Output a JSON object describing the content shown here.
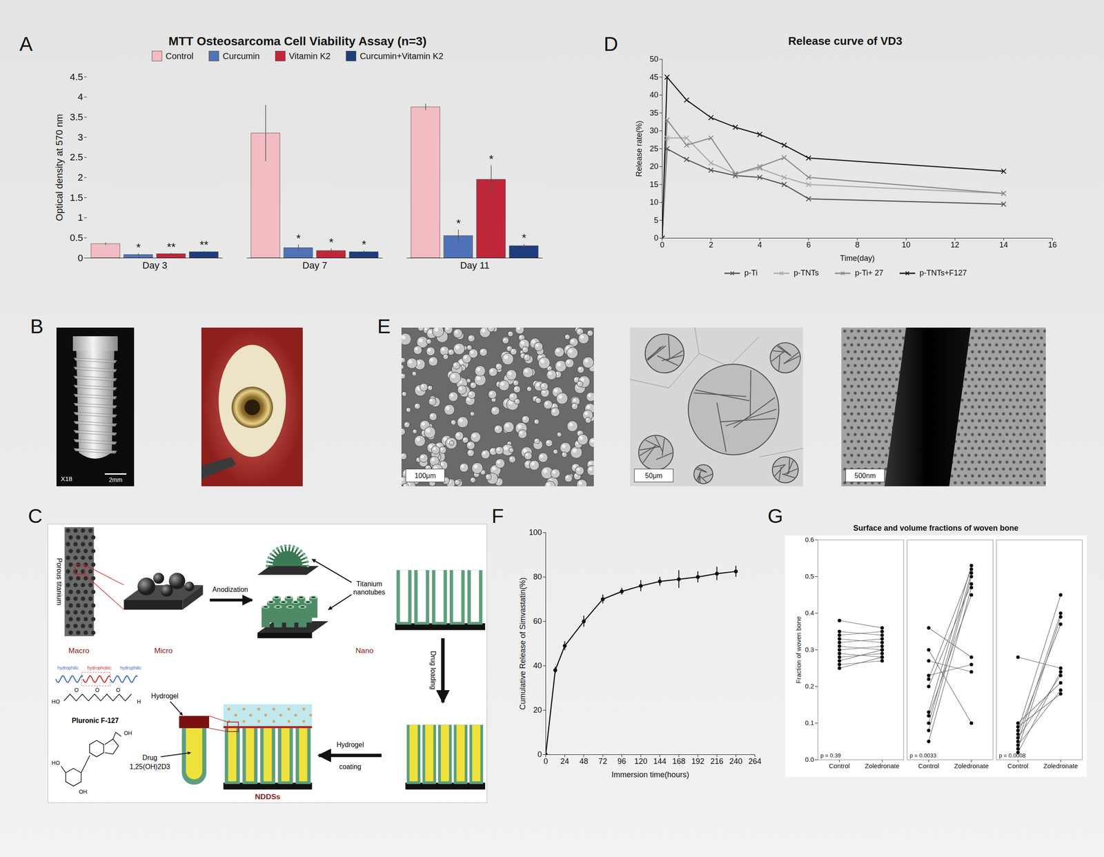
{
  "chart_data": [
    {
      "panel": "A",
      "type": "bar",
      "title": "MTT Osteosarcoma Cell Viability Assay (n=3)",
      "ylabel": "Optical density at 570 nm",
      "categories": [
        "Day 3",
        "Day 7",
        "Day 11"
      ],
      "series": [
        {
          "name": "Control",
          "color": "#f2bcc3",
          "values": [
            0.35,
            3.1,
            3.75
          ],
          "errors": [
            0.03,
            0.7,
            0.08
          ],
          "significance": [
            null,
            null,
            null
          ]
        },
        {
          "name": "Curcumin",
          "color": "#4f73b6",
          "values": [
            0.08,
            0.25,
            0.55
          ],
          "errors": [
            0.03,
            0.08,
            0.15
          ],
          "significance": [
            "*",
            "*",
            "*"
          ]
        },
        {
          "name": "Vitamin K2",
          "color": "#c0263a",
          "values": [
            0.1,
            0.18,
            1.95
          ],
          "errors": [
            0.02,
            0.05,
            0.35
          ],
          "significance": [
            "**",
            "*",
            "*"
          ]
        },
        {
          "name": "Curcumin+Vitamin K2",
          "color": "#1f3d7a",
          "values": [
            0.15,
            0.15,
            0.3
          ],
          "errors": [
            0.02,
            0.03,
            0.04
          ],
          "significance": [
            "**",
            "*",
            "*"
          ]
        }
      ],
      "ylim": [
        0,
        4.5
      ],
      "yticks": [
        0,
        0.5,
        1,
        1.5,
        2,
        2.5,
        3,
        3.5,
        4,
        4.5
      ],
      "legend": "top"
    },
    {
      "panel": "D",
      "type": "line",
      "title": "Release curve of VD3",
      "xlabel": "Time(day)",
      "ylabel": "Release rate(%)",
      "x": [
        0,
        0.2,
        1,
        2,
        3,
        4,
        5,
        6,
        14
      ],
      "series": [
        {
          "name": "p-Ti",
          "color": "#555555",
          "values": [
            0,
            25,
            22,
            19,
            17.5,
            17,
            15,
            11,
            9.5
          ]
        },
        {
          "name": "p-TNTs",
          "color": "#aaaaaa",
          "values": [
            0,
            28,
            28,
            21,
            18,
            19.5,
            17,
            15,
            12.5
          ]
        },
        {
          "name": "p-Ti+ 27",
          "color": "#888888",
          "values": [
            0,
            33,
            26,
            28,
            18,
            20,
            22.5,
            17,
            12.5
          ]
        },
        {
          "name": "p-TNTs+F127",
          "color": "#1a1a1a",
          "values": [
            0,
            45,
            38.6,
            33.7,
            31,
            29,
            26,
            22.4,
            18.7
          ]
        }
      ],
      "xlim": [
        0,
        16
      ],
      "xticks": [
        0,
        2,
        4,
        6,
        8,
        10,
        12,
        14,
        16
      ],
      "ylim": [
        0,
        50
      ],
      "yticks": [
        0,
        5,
        10,
        15,
        20,
        25,
        30,
        35,
        40,
        45,
        50
      ],
      "marker": "times",
      "legend": "bottom"
    },
    {
      "panel": "F",
      "type": "line",
      "xlabel": "Immersion time(hours)",
      "ylabel": "Cumulative Release of Simvastatin(%)",
      "x": [
        0,
        12,
        24,
        48,
        72,
        96,
        120,
        144,
        168,
        192,
        216,
        240
      ],
      "values": [
        0,
        38,
        49,
        60,
        70,
        73.5,
        76,
        78,
        79,
        80,
        81.5,
        82.5
      ],
      "errors": [
        0,
        1.5,
        2,
        2.5,
        2,
        1.5,
        2.5,
        2,
        4,
        2.5,
        3,
        2.5
      ],
      "color": "#111111",
      "marker": "circle",
      "xlim": [
        0,
        264
      ],
      "xticks": [
        0,
        24,
        48,
        72,
        96,
        120,
        144,
        168,
        192,
        216,
        240,
        264
      ],
      "ylim": [
        0,
        100
      ],
      "yticks": [
        0,
        20,
        40,
        60,
        80,
        100
      ]
    },
    {
      "panel": "G",
      "type": "scatter",
      "title": "Surface and volume fractions of woven bone",
      "ylabel": "Fraction of woven bone",
      "categories": [
        "Control",
        "Zoledronate"
      ],
      "groups": [
        {
          "annotation": "p = 0.39",
          "pairs": [
            [
              0.38,
              0.36
            ],
            [
              0.35,
              0.34
            ],
            [
              0.34,
              0.35
            ],
            [
              0.33,
              0.32
            ],
            [
              0.32,
              0.33
            ],
            [
              0.31,
              0.3
            ],
            [
              0.3,
              0.31
            ],
            [
              0.29,
              0.28
            ],
            [
              0.28,
              0.29
            ],
            [
              0.27,
              0.3
            ],
            [
              0.26,
              0.27
            ],
            [
              0.25,
              0.28
            ]
          ]
        },
        {
          "annotation": "p = 0.0033",
          "pairs": [
            [
              0.13,
              0.53
            ],
            [
              0.22,
              0.52
            ],
            [
              0.1,
              0.51
            ],
            [
              0.08,
              0.5
            ],
            [
              0.2,
              0.48
            ],
            [
              0.05,
              0.47
            ],
            [
              0.12,
              0.45
            ],
            [
              0.36,
              0.28
            ],
            [
              0.23,
              0.26
            ],
            [
              0.27,
              0.24
            ],
            [
              0.3,
              0.1
            ]
          ]
        },
        {
          "annotation": "p = 0.0008",
          "pairs": [
            [
              0.08,
              0.45
            ],
            [
              0.05,
              0.4
            ],
            [
              0.03,
              0.39
            ],
            [
              0.07,
              0.37
            ],
            [
              0.28,
              0.25
            ],
            [
              0.02,
              0.24
            ],
            [
              0.06,
              0.23
            ],
            [
              0.1,
              0.21
            ],
            [
              0.04,
              0.19
            ],
            [
              0.09,
              0.18
            ]
          ]
        }
      ],
      "ylim": [
        0,
        0.6
      ],
      "yticks": [
        {
          "value": 0,
          "label": "0.0"
        },
        {
          "value": 0.1,
          "label": "0.1"
        },
        {
          "value": 0.2,
          "label": "0.2"
        },
        {
          "value": 0.3,
          "label": "0.3"
        },
        {
          "value": 0.4,
          "label": "0.4"
        },
        {
          "value": 0.5,
          "label": "0.5"
        },
        {
          "value": 0.6,
          "label": "0.6"
        }
      ],
      "color": "#000000",
      "marker": "circle"
    }
  ],
  "images": {
    "B": {
      "panel": "B",
      "sem_labels": [
        "X18",
        "2mm"
      ]
    },
    "E": {
      "panel": "E",
      "scale_bars": [
        "100μm",
        "50μm",
        "500nm"
      ]
    }
  },
  "diagram": {
    "panel": "C",
    "porous_label": "Porous titanium",
    "scales": [
      "Macro",
      "Micro",
      "Nano"
    ],
    "anodization": "Anodization",
    "nanotubes_label": "Titanium nanotubes",
    "drug_loading": "Drug loading",
    "hydrogel_coating": "Hydrogel coating",
    "ndds": "NDDSs",
    "hydrogel": "Hydrogel",
    "drug": "Drug",
    "drug_name": "1,25(OH)2D3",
    "polymer": "Pluronic F-127",
    "blocks": [
      "hydrophilic",
      "hydrophobic",
      "hydrophilic"
    ],
    "polymer_atoms": [
      "HO",
      "O",
      "O",
      "O",
      "H"
    ],
    "drug_atoms": [
      "OH",
      "HO",
      "OH"
    ]
  }
}
